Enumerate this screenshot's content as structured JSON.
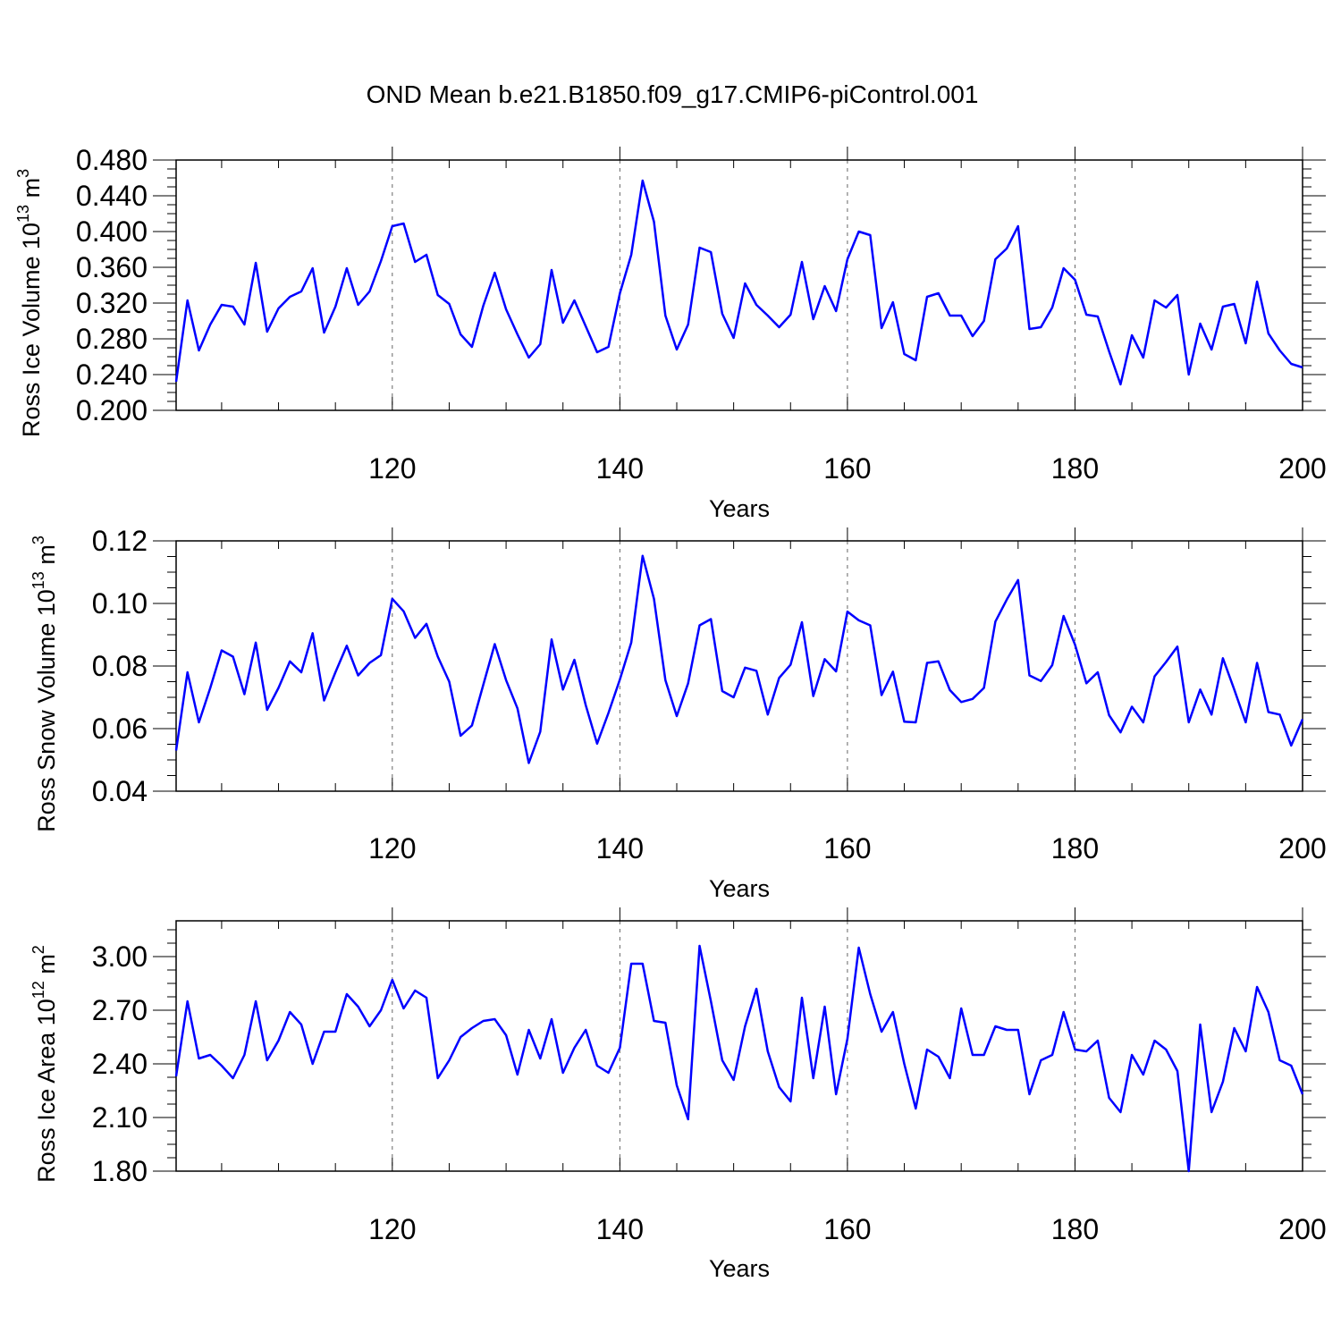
{
  "figure": {
    "title": "OND Mean b.e21.B1850.f09_g17.CMIP6-piControl.001",
    "line_color": "#0000ff",
    "grid_color": "#666666"
  },
  "chart_data": [
    {
      "type": "line",
      "xlabel": "Years",
      "ylabel": {
        "prefix": "Ross Ice Volume 10",
        "exp": "13",
        "unit": " m",
        "unit_exp": "3"
      },
      "xlim": [
        101,
        200
      ],
      "ylim": [
        0.2,
        0.48
      ],
      "xticks": [
        120,
        140,
        160,
        180,
        200
      ],
      "yticks": [
        "0.200",
        "0.240",
        "0.280",
        "0.320",
        "0.360",
        "0.400",
        "0.440",
        "0.480"
      ],
      "x_start": 101,
      "values": [
        0.232,
        0.323,
        0.267,
        0.296,
        0.318,
        0.316,
        0.296,
        0.365,
        0.288,
        0.314,
        0.327,
        0.333,
        0.359,
        0.287,
        0.316,
        0.359,
        0.318,
        0.333,
        0.367,
        0.406,
        0.409,
        0.366,
        0.374,
        0.329,
        0.319,
        0.285,
        0.271,
        0.317,
        0.354,
        0.313,
        0.285,
        0.259,
        0.274,
        0.357,
        0.298,
        0.323,
        0.294,
        0.265,
        0.271,
        0.331,
        0.374,
        0.457,
        0.411,
        0.306,
        0.268,
        0.296,
        0.382,
        0.377,
        0.308,
        0.281,
        0.342,
        0.318,
        0.306,
        0.293,
        0.307,
        0.366,
        0.302,
        0.339,
        0.311,
        0.369,
        0.4,
        0.396,
        0.292,
        0.321,
        0.263,
        0.256,
        0.327,
        0.331,
        0.306,
        0.306,
        0.283,
        0.3,
        0.369,
        0.381,
        0.406,
        0.291,
        0.293,
        0.315,
        0.359,
        0.346,
        0.307,
        0.305,
        0.266,
        0.229,
        0.284,
        0.259,
        0.323,
        0.315,
        0.329,
        0.24,
        0.297,
        0.268,
        0.316,
        0.319,
        0.275,
        0.344,
        0.286,
        0.267,
        0.252,
        0.248
      ]
    },
    {
      "type": "line",
      "xlabel": "Years",
      "ylabel": {
        "prefix": "Ross Snow Volume 10",
        "exp": "13",
        "unit": " m",
        "unit_exp": "3"
      },
      "xlim": [
        101,
        200
      ],
      "ylim": [
        0.04,
        0.12
      ],
      "xticks": [
        120,
        140,
        160,
        180,
        200
      ],
      "yticks": [
        "0.04",
        "0.06",
        "0.08",
        "0.10",
        "0.12"
      ],
      "x_start": 101,
      "values": [
        0.053,
        0.078,
        0.062,
        0.073,
        0.085,
        0.083,
        0.071,
        0.0875,
        0.066,
        0.073,
        0.0815,
        0.078,
        0.0905,
        0.069,
        0.078,
        0.0865,
        0.077,
        0.081,
        0.0835,
        0.1015,
        0.0975,
        0.089,
        0.0935,
        0.083,
        0.075,
        0.0577,
        0.061,
        0.074,
        0.087,
        0.0755,
        0.0665,
        0.049,
        0.059,
        0.0885,
        0.0725,
        0.082,
        0.0675,
        0.0552,
        0.065,
        0.0757,
        0.0875,
        0.1152,
        0.1015,
        0.0755,
        0.064,
        0.0745,
        0.093,
        0.095,
        0.072,
        0.07,
        0.0795,
        0.0785,
        0.0645,
        0.0762,
        0.0804,
        0.094,
        0.0704,
        0.0822,
        0.0783,
        0.0974,
        0.0946,
        0.093,
        0.0707,
        0.0782,
        0.0622,
        0.062,
        0.081,
        0.0815,
        0.0723,
        0.0685,
        0.0695,
        0.073,
        0.0942,
        0.1012,
        0.1075,
        0.077,
        0.0752,
        0.0803,
        0.096,
        0.0868,
        0.0745,
        0.078,
        0.0643,
        0.0588,
        0.067,
        0.062,
        0.0767,
        0.0813,
        0.0862,
        0.062,
        0.0725,
        0.0645,
        0.0825,
        0.0725,
        0.062,
        0.081,
        0.0653,
        0.0645,
        0.0546,
        0.063
      ]
    },
    {
      "type": "line",
      "xlabel": "Years",
      "ylabel": {
        "prefix": "Ross Ice Area 10",
        "exp": "12",
        "unit": " m",
        "unit_exp": "2"
      },
      "xlim": [
        101,
        200
      ],
      "ylim": [
        1.8,
        3.2
      ],
      "xticks": [
        120,
        140,
        160,
        180,
        200
      ],
      "yticks": [
        "1.80",
        "2.10",
        "2.40",
        "2.70",
        "3.00"
      ],
      "x_start": 101,
      "values": [
        2.33,
        2.75,
        2.43,
        2.45,
        2.39,
        2.32,
        2.45,
        2.75,
        2.42,
        2.53,
        2.69,
        2.62,
        2.4,
        2.58,
        2.58,
        2.79,
        2.72,
        2.61,
        2.7,
        2.87,
        2.71,
        2.81,
        2.77,
        2.32,
        2.42,
        2.55,
        2.6,
        2.64,
        2.65,
        2.56,
        2.34,
        2.59,
        2.43,
        2.65,
        2.35,
        2.49,
        2.59,
        2.39,
        2.35,
        2.49,
        2.96,
        2.96,
        2.64,
        2.63,
        2.28,
        2.09,
        3.06,
        2.75,
        2.42,
        2.31,
        2.61,
        2.82,
        2.47,
        2.27,
        2.19,
        2.77,
        2.32,
        2.72,
        2.23,
        2.54,
        3.05,
        2.79,
        2.58,
        2.69,
        2.4,
        2.15,
        2.48,
        2.44,
        2.32,
        2.71,
        2.45,
        2.45,
        2.61,
        2.59,
        2.59,
        2.23,
        2.42,
        2.45,
        2.69,
        2.48,
        2.47,
        2.53,
        2.21,
        2.13,
        2.45,
        2.34,
        2.53,
        2.48,
        2.36,
        1.8,
        2.62,
        2.13,
        2.3,
        2.6,
        2.47,
        2.83,
        2.69,
        2.42,
        2.39,
        2.23
      ]
    }
  ]
}
